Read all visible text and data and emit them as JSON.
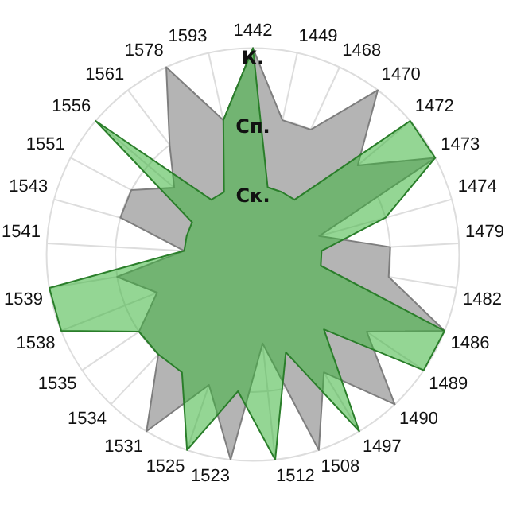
{
  "chart_data": {
    "type": "radar",
    "categories": [
      "1442",
      "1449",
      "1468",
      "1470",
      "1472",
      "1473",
      "1474",
      "1479",
      "1482",
      "1486",
      "1489",
      "1490",
      "1497",
      "1508",
      "1512",
      "1523",
      "1525",
      "1531",
      "1534",
      "1535",
      "1538",
      "1539",
      "1541",
      "1543",
      "1551",
      "1556",
      "1561",
      "1578",
      "1593"
    ],
    "series": [
      {
        "color": "#b4b4b4",
        "values": [
          3,
          2,
          2,
          3,
          2,
          3,
          1,
          2,
          2,
          3,
          2,
          3,
          2,
          3,
          1.3,
          3,
          2,
          3,
          2,
          2,
          1.5,
          2,
          1,
          2,
          2,
          1.5,
          2,
          3,
          2
        ]
      },
      {
        "color": "#3cb43c",
        "values": [
          3,
          1,
          1,
          1,
          3,
          3,
          2,
          1,
          1,
          3,
          3,
          1.5,
          3,
          1.5,
          3,
          2,
          3,
          2,
          2,
          2,
          3,
          3,
          1,
          1,
          1,
          3,
          1,
          1,
          2
        ]
      }
    ],
    "ylim": [
      0,
      3
    ],
    "yticks": [
      {
        "value": 1,
        "label": "Ск."
      },
      {
        "value": 2,
        "label": "Сп."
      },
      {
        "value": 3,
        "label": "К."
      }
    ],
    "grid": true,
    "legend": false,
    "marker": "none"
  }
}
